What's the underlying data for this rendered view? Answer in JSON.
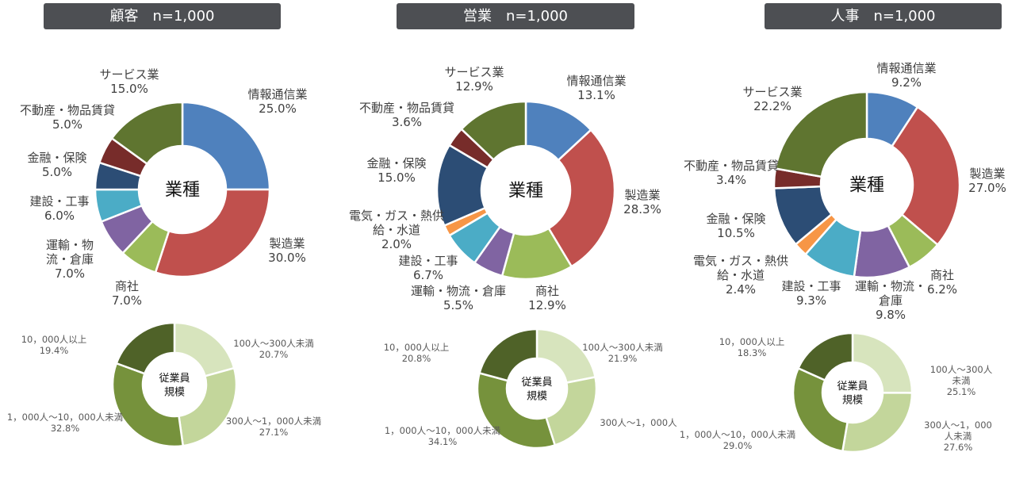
{
  "titles": [
    "顧客　n=1,000",
    "営業　n=1,000",
    "人事　n=1,000"
  ],
  "chart_data": [
    {
      "type": "pie",
      "group": "顧客",
      "center_label": "業種",
      "categories": [
        "情報通信業",
        "製造業",
        "商社",
        "運輸・物流・倉庫",
        "建設・工事",
        "金融・保険",
        "不動産・物品賃貸",
        "サービス業"
      ],
      "values": [
        25.0,
        30.0,
        7.0,
        7.0,
        6.0,
        5.0,
        5.0,
        15.0
      ],
      "colors": [
        "#4f81bd",
        "#c0504d",
        "#9bbb59",
        "#8064a2",
        "#4bacc6",
        "#2c4d75",
        "#772c2a",
        "#5f7530"
      ],
      "data_labels": [
        "情報通信業\n25.0%",
        "製造業\n30.0%",
        "商社\n7.0%",
        "運輸・物\n流・倉庫\n7.0%",
        "建設・工事\n6.0%",
        "金融・保険\n5.0%",
        "不動産・物品賃貸\n5.0%",
        "サービス業\n15.0%"
      ]
    },
    {
      "type": "pie",
      "group": "顧客",
      "center_label": "従業員\n規模",
      "categories": [
        "100人～300人未満",
        "300人～1，000人未満",
        "1，000人～10，000人未満",
        "10，000人以上"
      ],
      "values": [
        20.7,
        27.1,
        32.8,
        19.4
      ],
      "colors": [
        "#d7e4bd",
        "#c3d69b",
        "#76923c",
        "#4f6228"
      ],
      "data_labels": [
        "100人～300人未満\n20.7%",
        "300人～1，000人未満\n27.1%",
        "1，000人～10，000人未満\n32.8%",
        "10，000人以上\n19.4%"
      ]
    },
    {
      "type": "pie",
      "group": "営業",
      "center_label": "業種",
      "categories": [
        "情報通信業",
        "製造業",
        "商社",
        "運輸・物流・倉庫",
        "建設・工事",
        "電気・ガス・熱供給・水道",
        "金融・保険",
        "不動産・物品賃貸",
        "サービス業"
      ],
      "values": [
        13.1,
        28.3,
        12.9,
        5.5,
        6.7,
        2.0,
        15.0,
        3.6,
        12.9
      ],
      "colors": [
        "#4f81bd",
        "#c0504d",
        "#9bbb59",
        "#8064a2",
        "#4bacc6",
        "#f79646",
        "#2c4d75",
        "#772c2a",
        "#5f7530"
      ],
      "data_labels": [
        "情報通信業\n13.1%",
        "製造業\n28.3%",
        "商社\n12.9%",
        "運輸・物流・倉庫\n5.5%",
        "建設・工事\n6.7%",
        "電気・ガス・熱供\n給・水道\n2.0%",
        "金融・保険\n15.0%",
        "不動産・物品賃貸\n3.6%",
        "サービス業\n12.9%"
      ]
    },
    {
      "type": "pie",
      "group": "営業",
      "center_label": "従業員\n規模",
      "categories": [
        "100人～300人未満",
        "300人～1，000人",
        "1，000人～10，000人未満",
        "10，000人以上"
      ],
      "values": [
        21.9,
        23.2,
        34.1,
        20.8
      ],
      "colors": [
        "#d7e4bd",
        "#c3d69b",
        "#76923c",
        "#4f6228"
      ],
      "data_labels": [
        "100人～300人未満\n21.9%",
        "300人～1，000人",
        "1，000人～10，000人未満\n34.1%",
        "10，000人以上\n20.8%"
      ]
    },
    {
      "type": "pie",
      "group": "人事",
      "center_label": "業種",
      "categories": [
        "情報通信業",
        "製造業",
        "商社",
        "運輸・物流・倉庫",
        "建設・工事",
        "電気・ガス・熱供給・水道",
        "金融・保険",
        "不動産・物品賃貸",
        "サービス業"
      ],
      "values": [
        9.2,
        27.0,
        6.2,
        9.8,
        9.3,
        2.4,
        10.5,
        3.4,
        22.2
      ],
      "colors": [
        "#4f81bd",
        "#c0504d",
        "#9bbb59",
        "#8064a2",
        "#4bacc6",
        "#f79646",
        "#2c4d75",
        "#772c2a",
        "#5f7530"
      ],
      "data_labels": [
        "情報通信業\n9.2%",
        "製造業\n27.0%",
        "商社\n6.2%",
        "運輸・物流・\n倉庫\n9.8%",
        "建設・工事\n9.3%",
        "電気・ガス・熱供\n給・水道\n2.4%",
        "金融・保険\n10.5%",
        "不動産・物品賃貸\n3.4%",
        "サービス業\n22.2%"
      ]
    },
    {
      "type": "pie",
      "group": "人事",
      "center_label": "従業員\n規模",
      "categories": [
        "100人～300人未満",
        "300人～1，000人未満",
        "1，000人～10，000人未満",
        "10，000人以上"
      ],
      "values": [
        25.1,
        27.6,
        29.0,
        18.3
      ],
      "colors": [
        "#d7e4bd",
        "#c3d69b",
        "#76923c",
        "#4f6228"
      ],
      "data_labels": [
        "100人～300人未満\n25.1%",
        "300人～1，000人未満\n27.6%",
        "1，000人～10，000人未満\n29.0%",
        "10，000人以上\n18.3%"
      ]
    }
  ]
}
